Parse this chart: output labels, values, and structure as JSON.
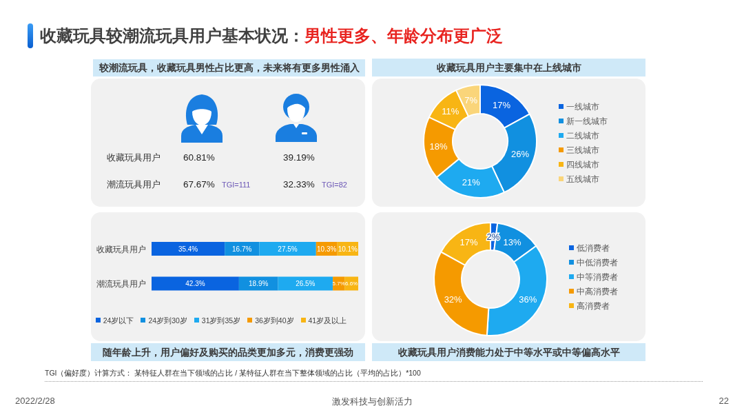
{
  "chart_data": [
    {
      "type": "other",
      "title": "收藏玩具较潮流玩具用户基本状况：",
      "subtitle": "男性更多、年龄分布更广泛",
      "annotations": [
        "TGI（偏好度）计算方式： 某特征人群在当下领域的占比 / 某特征人群在当下整体领域的占比（平均的占比）*100",
        "2022/2/28",
        "激发科技与创新活力",
        "22"
      ]
    },
    {
      "type": "other",
      "title": "较潮流玩具，收藏玩具男性占比更高，未来将有更多男性涌入",
      "categories": [
        null,
        null
      ],
      "y_categories": [
        "收藏玩具用户",
        "潮流玩具用户"
      ],
      "cell_labels": [
        [
          "60.81%",
          "39.19%"
        ],
        [
          "67.67%",
          "32.33%"
        ]
      ],
      "annotations": [
        "TGI=111",
        "TGI=82"
      ]
    },
    {
      "type": "donut",
      "title": "收藏玩具用户主要集中在上线城市",
      "categories": [
        "一线城市",
        "新一线城市",
        "二线城市",
        "三线城市",
        "四线城市",
        "五线城市"
      ],
      "values": [
        17,
        26,
        21,
        18,
        11,
        7
      ],
      "colors": [
        "#0a64e0",
        "#1190e0",
        "#1eaaf0",
        "#f59a00",
        "#f8b514",
        "#fad57a"
      ],
      "value_labels": [
        "17%",
        "26%",
        "21%",
        "18%",
        "11%",
        "7%"
      ],
      "legend": "right"
    },
    {
      "type": "bar",
      "orientation": "horizontal",
      "stacked": true,
      "title": "随年龄上升，用户偏好及购买的品类更加多元，消费更强劲",
      "categories": [
        "收藏玩具用户",
        "潮流玩具用户"
      ],
      "xlim": [
        0,
        100
      ],
      "tick_labels": "y",
      "legend": "bottom",
      "series": [
        {
          "name": "24岁以下",
          "color": "#0a64e0",
          "values": [
            35.4,
            42.3
          ],
          "value_labels": [
            "35.4%",
            "42.3%"
          ]
        },
        {
          "name": "24岁到30岁",
          "color": "#1190e0",
          "values": [
            16.7,
            18.9
          ],
          "value_labels": [
            "16.7%",
            "18.9%"
          ]
        },
        {
          "name": "31岁到35岁",
          "color": "#1eaaf0",
          "values": [
            27.5,
            26.5
          ],
          "value_labels": [
            "27.5%",
            "26.5%"
          ]
        },
        {
          "name": "36岁到40岁",
          "color": "#f59a00",
          "values": [
            10.3,
            5.7
          ],
          "value_labels": [
            "10.3%",
            "5.7%"
          ]
        },
        {
          "name": "41岁及以上",
          "color": "#f8b514",
          "values": [
            10.1,
            6.6
          ],
          "value_labels": [
            "10.1%",
            "6.6%"
          ]
        }
      ]
    },
    {
      "type": "donut",
      "title": "收藏玩具用户消费能力处于中等水平或中等偏高水平",
      "categories": [
        "低消费者",
        "中低消费者",
        "中等消费者",
        "中高消费者",
        "高消费者"
      ],
      "values": [
        2,
        13,
        36,
        32,
        17
      ],
      "colors": [
        "#0a64e0",
        "#1190e0",
        "#1eaaf0",
        "#f59a00",
        "#f8b514"
      ],
      "value_labels": [
        "2%",
        "13%",
        "36%",
        "32%",
        "17%"
      ],
      "legend": "right"
    }
  ]
}
